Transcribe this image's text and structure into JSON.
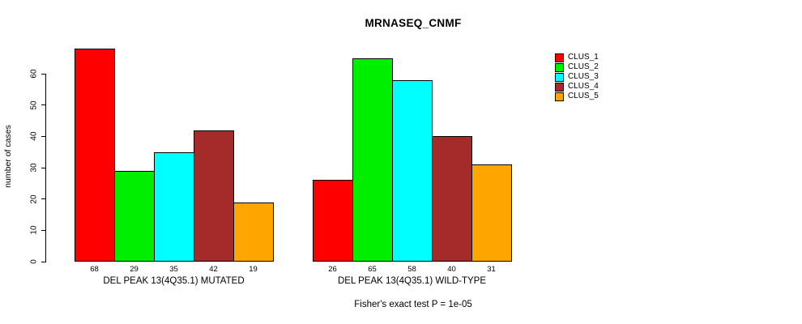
{
  "chart_data": {
    "type": "bar",
    "title": "MRNASEQ_CNMF",
    "ylabel": "number of cases",
    "xlabel": "",
    "yticks": [
      0,
      10,
      20,
      30,
      40,
      50,
      60
    ],
    "ylim": [
      0,
      68
    ],
    "grid": false,
    "legend_position": "top-right",
    "series_names": [
      "CLUS_1",
      "CLUS_2",
      "CLUS_3",
      "CLUS_4",
      "CLUS_5"
    ],
    "colors": [
      "#FF0000",
      "#00EE00",
      "#00FFFF",
      "#A52A2A",
      "#FFA500"
    ],
    "groups": [
      {
        "label": "DEL PEAK 13(4Q35.1) MUTATED",
        "values": [
          68,
          29,
          35,
          42,
          19
        ]
      },
      {
        "label": "DEL PEAK 13(4Q35.1) WILD-TYPE",
        "values": [
          26,
          65,
          58,
          40,
          31
        ]
      }
    ],
    "annotation": "Fisher's exact test P = 1e-05"
  }
}
